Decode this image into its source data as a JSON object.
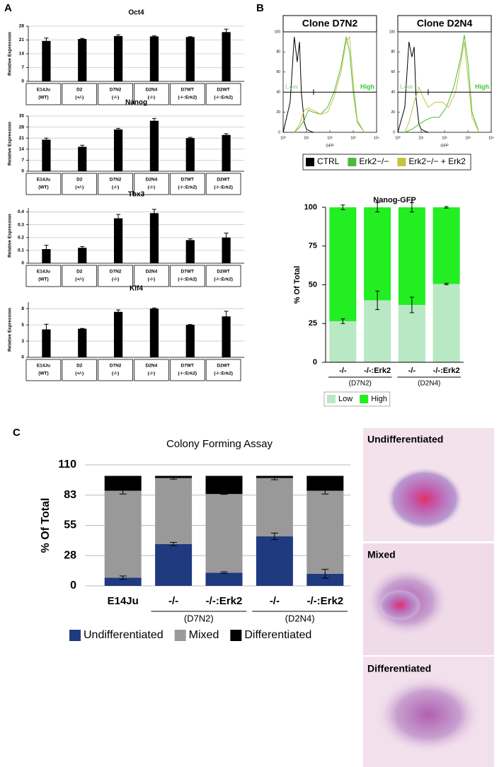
{
  "panel_labels": [
    "A",
    "B",
    "C"
  ],
  "images": [
    {
      "label": "Undifferentiated"
    },
    {
      "label": "Mixed"
    },
    {
      "label": "Differentiated"
    }
  ],
  "chart_data": [
    {
      "type": "bar",
      "title": "Oct4",
      "y_label": "Relative Expression",
      "categories": [
        [
          "E14Ju",
          "(WT)"
        ],
        [
          "D2",
          "(+/-)"
        ],
        [
          "D7N2",
          "(-/-)"
        ],
        [
          "D2N4",
          "(-/-)"
        ],
        [
          "D7WT",
          "(-/-:Erk2)"
        ],
        [
          "D2WT",
          "(-/-:Erk2)"
        ]
      ],
      "values": [
        20.5,
        21.5,
        23,
        22.8,
        22.5,
        25
      ],
      "errors": [
        1.5,
        0.3,
        0.6,
        0.3,
        0.2,
        1.5
      ],
      "color": "#000000",
      "ylim": [
        0,
        28
      ],
      "yticks": [
        0,
        7,
        14,
        21,
        28
      ],
      "grid": true
    },
    {
      "type": "bar",
      "title": "Nanog",
      "y_label": "Relative Expression",
      "categories": [
        [
          "E14Ju",
          "(WT)"
        ],
        [
          "D2",
          "(+/-)"
        ],
        [
          "D7N2",
          "(-/-)"
        ],
        [
          "D2N4",
          "(-/-)"
        ],
        [
          "D7WT",
          "(-/-:Erk2)"
        ],
        [
          "D2WT",
          "(-/-:Erk2)"
        ]
      ],
      "values": [
        20,
        15.5,
        26.5,
        32,
        21,
        23
      ],
      "errors": [
        1,
        1,
        0.7,
        1.5,
        0.5,
        0.8
      ],
      "color": "#000000",
      "ylim": [
        0,
        35
      ],
      "yticks": [
        0,
        7,
        14,
        21,
        28,
        35
      ],
      "grid": true
    },
    {
      "type": "bar",
      "title": "Tbx3",
      "y_label": "Relative Expression",
      "categories": [
        [
          "E14Ju",
          "(WT)"
        ],
        [
          "D2",
          "(+/-)"
        ],
        [
          "D7N2",
          "(-/-)"
        ],
        [
          "D2N4",
          "(-/-)"
        ],
        [
          "D7WT",
          "(-/-:Erk2)"
        ],
        [
          "D2WT",
          "(-/-:Erk2)"
        ]
      ],
      "values": [
        0.11,
        0.12,
        0.35,
        0.39,
        0.18,
        0.2
      ],
      "errors": [
        0.03,
        0.01,
        0.03,
        0.03,
        0.01,
        0.035
      ],
      "color": "#000000",
      "ylim": [
        0,
        0.43
      ],
      "yticks": [
        0,
        0.1,
        0.2,
        0.3,
        0.4
      ],
      "grid": true
    },
    {
      "type": "bar",
      "title": "Klf4",
      "y_label": "Relative Expression",
      "categories": [
        [
          "E14Ju",
          "(WT)"
        ],
        [
          "D2",
          "(+/-)"
        ],
        [
          "D7N2",
          "(-/-)"
        ],
        [
          "D2N4",
          "(-/-)"
        ],
        [
          "D7WT",
          "(-/-:Erk2)"
        ],
        [
          "D2WT",
          "(-/-:Erk2)"
        ]
      ],
      "values": [
        4.3,
        4.4,
        7,
        7.5,
        5,
        6.3
      ],
      "errors": [
        0.8,
        0.05,
        0.3,
        0.1,
        0.05,
        0.8
      ],
      "color": "#000000",
      "ylim": [
        0,
        8.5
      ],
      "yticks": [
        0,
        {
          "value": 2.5,
          "label": "3"
        },
        5,
        {
          "value": 7.5,
          "label": "8"
        }
      ],
      "grid": true
    },
    {
      "type": "line",
      "title": "Clone D7N2",
      "x_label": "GFP",
      "log_x": true,
      "legend": "bottom",
      "xlim": [
        1,
        10000
      ],
      "xticks": [
        {
          "value": 1,
          "label": "10⁰"
        },
        {
          "value": 10,
          "label": "10¹"
        },
        {
          "value": 100,
          "label": "10²"
        },
        {
          "value": 1000,
          "label": "10³"
        },
        {
          "value": 10000,
          "label": "10⁴"
        }
      ],
      "ylim": [
        0,
        100
      ],
      "yticks": [
        0,
        20,
        40,
        60,
        80,
        100
      ],
      "gate": {
        "y": 40,
        "x": 20
      },
      "annotations": [
        {
          "text": "Low",
          "color": "#a8e0b0"
        },
        {
          "text": "High",
          "color": "#33cc33"
        }
      ],
      "series": [
        {
          "name": "CTRL",
          "color": "#000000",
          "x": [
            1,
            2,
            3,
            4,
            5,
            6,
            8,
            10,
            15,
            20
          ],
          "values": [
            0,
            30,
            95,
            70,
            90,
            40,
            10,
            3,
            1,
            0
          ]
        },
        {
          "name": "Erk2−/−",
          "color": "#4cbb3c",
          "x": [
            3,
            5,
            8,
            12,
            20,
            40,
            80,
            150,
            300,
            500,
            700,
            1000,
            1500,
            3000
          ],
          "values": [
            0,
            5,
            12,
            22,
            20,
            18,
            25,
            40,
            65,
            95,
            80,
            40,
            10,
            0
          ]
        },
        {
          "name": "Erk2−/− + Erk2",
          "color": "#c8c040",
          "x": [
            3,
            5,
            8,
            12,
            20,
            40,
            80,
            150,
            300,
            500,
            700,
            1000,
            1500,
            3000
          ],
          "values": [
            0,
            8,
            22,
            24,
            22,
            18,
            20,
            35,
            60,
            90,
            95,
            50,
            12,
            0
          ]
        }
      ]
    },
    {
      "type": "line",
      "title": "Clone D2N4",
      "x_label": "GFP",
      "log_x": true,
      "xlim": [
        1,
        10000
      ],
      "xticks": [
        {
          "value": 1,
          "label": "10⁰"
        },
        {
          "value": 10,
          "label": "10¹"
        },
        {
          "value": 100,
          "label": "10²"
        },
        {
          "value": 1000,
          "label": "10³"
        },
        {
          "value": 10000,
          "label": "10⁴"
        }
      ],
      "ylim": [
        0,
        100
      ],
      "yticks": [
        0,
        20,
        40,
        60,
        80,
        100
      ],
      "gate": {
        "y": 40,
        "x": 20
      },
      "annotations": [
        {
          "text": "Low",
          "color": "#a8e0b0"
        },
        {
          "text": "High",
          "color": "#33cc33"
        }
      ],
      "series": [
        {
          "color": "#000000",
          "x": [
            1,
            2,
            3,
            4,
            5,
            6,
            8,
            10,
            15,
            20
          ],
          "values": [
            0,
            25,
            90,
            75,
            85,
            35,
            8,
            3,
            1,
            0
          ]
        },
        {
          "color": "#4cbb3c",
          "x": [
            2,
            4,
            8,
            15,
            30,
            60,
            120,
            250,
            500,
            700,
            1000,
            1500,
            3000
          ],
          "values": [
            0,
            3,
            8,
            12,
            15,
            15,
            25,
            45,
            75,
            97,
            70,
            20,
            0
          ]
        },
        {
          "color": "#c8c040",
          "x": [
            2,
            3,
            5,
            8,
            12,
            20,
            40,
            80,
            150,
            300,
            500,
            700,
            1000,
            1500,
            3000
          ],
          "values": [
            0,
            10,
            30,
            45,
            35,
            25,
            30,
            30,
            25,
            40,
            70,
            90,
            55,
            15,
            0
          ]
        }
      ]
    },
    {
      "type": "stacked_bar",
      "title": "Nanog-GFP",
      "y_label": "% Of Total",
      "categories": [
        "-/-",
        "-/-:Erk2",
        "-/-",
        "-/-:Erk2"
      ],
      "groups": [
        "(D7N2)",
        "(D2N4)"
      ],
      "ylim": [
        0,
        100
      ],
      "yticks": [
        0,
        25,
        50,
        75,
        100
      ],
      "grid": false,
      "legend": "bottom",
      "series": [
        {
          "name": "Low",
          "color": "#b8e8c4",
          "values": [
            26.5,
            40,
            37,
            50.5
          ],
          "errors": [
            1.5,
            6,
            5,
            0.5
          ]
        },
        {
          "name": "High",
          "color": "#22ee22",
          "values": [
            73.5,
            60,
            63,
            49.5
          ],
          "errors": [
            1.5,
            3,
            3,
            0.5
          ]
        }
      ]
    },
    {
      "type": "stacked_bar",
      "title": "Colony Forming Assay",
      "y_label": "% Of Total",
      "categories": [
        "E14Ju",
        "-/-",
        "-/-:Erk2",
        "-/-",
        "-/-:Erk2"
      ],
      "groups": [
        "(D7N2)",
        "(D2N4)"
      ],
      "ylim": [
        0,
        110
      ],
      "yticks": [
        0,
        {
          "value": 27.5,
          "label": "28"
        },
        55,
        {
          "value": 82.5,
          "label": "83"
        },
        110
      ],
      "grid": true,
      "legend": "bottom",
      "series": [
        {
          "name": "Undifferentiated",
          "color": "#203a80",
          "values": [
            7.5,
            38,
            12,
            45,
            11
          ],
          "errors": [
            1.5,
            1.5,
            0.8,
            3,
            4
          ]
        },
        {
          "name": "Mixed",
          "color": "#999999",
          "values": [
            79,
            60,
            71.5,
            53,
            75.5
          ],
          "errors": [
            3,
            1,
            0.3,
            1.5,
            3
          ]
        },
        {
          "name": "Differentiated",
          "color": "#000000",
          "values": [
            13.5,
            2,
            16.5,
            2,
            13.5
          ]
        }
      ]
    }
  ]
}
